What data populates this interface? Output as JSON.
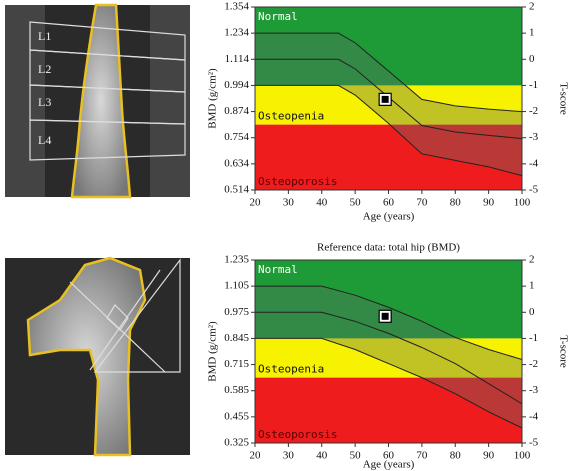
{
  "spine_labels": [
    "L1",
    "L2",
    "L3",
    "L4"
  ],
  "chart_data": [
    {
      "type": "line",
      "xlabel": "Age (years)",
      "ylabel": "BMD (g/cm²)",
      "y2label": "T-score",
      "xlim": [
        20,
        100
      ],
      "xticks": [
        20,
        30,
        40,
        50,
        60,
        70,
        80,
        90,
        100
      ],
      "ylim": [
        0.514,
        1.354
      ],
      "yticks": [
        0.514,
        0.634,
        0.754,
        0.874,
        0.994,
        1.114,
        1.234,
        1.354
      ],
      "y2lim": [
        -5,
        2
      ],
      "y2ticks": [
        -5,
        -4,
        -3,
        -2,
        -1,
        0,
        1,
        2
      ],
      "zones": [
        {
          "name": "Normal",
          "from": -1,
          "to": 2,
          "color": "#1e9a36"
        },
        {
          "name": "Osteopenia",
          "from": -2.5,
          "to": -1,
          "color": "#f7f200"
        },
        {
          "name": "Osteoporosis",
          "from": -5,
          "to": -2.5,
          "color": "#ee1c1c"
        }
      ],
      "x": [
        20,
        30,
        40,
        45,
        50,
        60,
        70,
        80,
        90,
        100
      ],
      "series": [
        {
          "color": "#222222",
          "values": [
            1.234,
            1.234,
            1.234,
            1.234,
            1.19,
            1.06,
            0.93,
            0.9,
            0.885,
            0.874
          ]
        },
        {
          "color": "#222222",
          "values": [
            1.114,
            1.114,
            1.114,
            1.114,
            1.07,
            0.94,
            0.81,
            0.78,
            0.765,
            0.75
          ]
        },
        {
          "color": "#222222",
          "values": [
            0.994,
            0.994,
            0.994,
            0.994,
            0.95,
            0.82,
            0.68,
            0.65,
            0.62,
            0.58
          ]
        }
      ],
      "points": [
        {
          "x": 59,
          "y": 0.93
        }
      ]
    },
    {
      "type": "line",
      "title": "Reference data: total hip (BMD)",
      "xlabel": "Age (years)",
      "ylabel": "BMD (g/cm²)",
      "y2label": "T-score",
      "xlim": [
        20,
        100
      ],
      "xticks": [
        20,
        30,
        40,
        50,
        60,
        70,
        80,
        90,
        100
      ],
      "ylim": [
        0.325,
        1.235
      ],
      "yticks": [
        0.325,
        0.455,
        0.585,
        0.715,
        0.845,
        0.975,
        1.105,
        1.235
      ],
      "y2lim": [
        -5,
        2
      ],
      "y2ticks": [
        -5,
        -4,
        -3,
        -2,
        -1,
        0,
        1,
        2
      ],
      "zones": [
        {
          "name": "Normal",
          "from": -1,
          "to": 2,
          "color": "#1e9a36"
        },
        {
          "name": "Osteopenia",
          "from": -2.5,
          "to": -1,
          "color": "#f7f200"
        },
        {
          "name": "Osteoporosis",
          "from": -5,
          "to": -2.5,
          "color": "#ee1c1c"
        }
      ],
      "x": [
        20,
        30,
        40,
        50,
        60,
        70,
        80,
        90,
        100
      ],
      "series": [
        {
          "color": "#222222",
          "values": [
            1.105,
            1.105,
            1.105,
            1.06,
            1.0,
            0.93,
            0.85,
            0.79,
            0.74
          ]
        },
        {
          "color": "#222222",
          "values": [
            0.975,
            0.975,
            0.975,
            0.93,
            0.87,
            0.8,
            0.72,
            0.62,
            0.52
          ]
        },
        {
          "color": "#222222",
          "values": [
            0.845,
            0.845,
            0.845,
            0.79,
            0.72,
            0.65,
            0.57,
            0.48,
            0.4
          ]
        }
      ],
      "points": [
        {
          "x": 59,
          "y": 0.955
        }
      ]
    }
  ]
}
